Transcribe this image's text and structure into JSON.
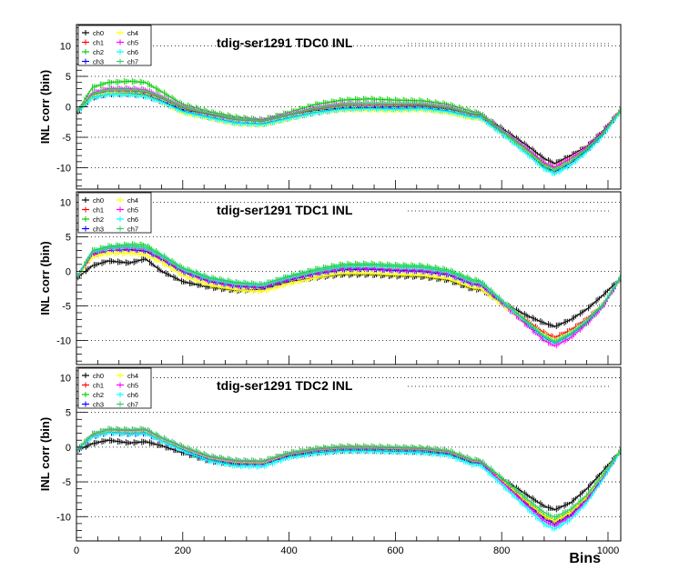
{
  "x_axis": {
    "label": "Bins",
    "range": [
      0,
      1024
    ],
    "ticks": [
      {
        "value": 0,
        "label": "0"
      },
      {
        "value": 200,
        "label": "200"
      },
      {
        "value": 400,
        "label": "400"
      },
      {
        "value": 600,
        "label": "600"
      },
      {
        "value": 800,
        "label": "800"
      },
      {
        "value": 1000,
        "label": "1000"
      }
    ]
  },
  "colors": {
    "ch0": "#000000",
    "ch1": "#ff0000",
    "ch2": "#00cc00",
    "ch3": "#0000ff",
    "ch4": "#ffff00",
    "ch5": "#ff00ff",
    "ch6": "#00ffff",
    "ch7": "#33cc66"
  },
  "legend_entries": [
    "ch0",
    "ch1",
    "ch2",
    "ch3",
    "ch4",
    "ch5",
    "ch6",
    "ch7"
  ],
  "chart_data": [
    {
      "type": "line",
      "title": "tdig-ser1291 TDC0 INL",
      "ylabel": "INL corr (bin)",
      "xlim": [
        0,
        1024
      ],
      "ylim": [
        -13.5,
        13.5
      ],
      "yticks": [
        -10,
        -5,
        0,
        5,
        10
      ],
      "grid": "horizontal-dotted",
      "legend_placement": "top-left",
      "x": [
        0,
        30,
        60,
        100,
        130,
        160,
        200,
        250,
        300,
        350,
        400,
        450,
        500,
        550,
        600,
        650,
        700,
        745,
        760,
        800,
        850,
        880,
        900,
        930,
        960,
        990,
        1024
      ],
      "series": [
        {
          "name": "ch0",
          "values": [
            -1,
            1.5,
            2.2,
            2.2,
            2.0,
            1.0,
            -0.5,
            -1.2,
            -2.0,
            -2.3,
            -1.3,
            -0.6,
            -0.2,
            -0.1,
            0.0,
            0.1,
            -0.4,
            -1.2,
            -1.3,
            -3.5,
            -6.5,
            -8.5,
            -9.3,
            -8.0,
            -6.5,
            -4.0,
            -0.5
          ]
        },
        {
          "name": "ch1",
          "values": [
            -1,
            2.0,
            2.6,
            2.6,
            2.4,
            1.4,
            -0.2,
            -1.3,
            -2.1,
            -2.4,
            -1.4,
            -0.4,
            0.2,
            0.3,
            0.3,
            0.3,
            -0.2,
            -1.3,
            -1.4,
            -4.0,
            -7.2,
            -9.3,
            -10.0,
            -8.5,
            -6.8,
            -4.3,
            -0.5
          ]
        },
        {
          "name": "ch2",
          "values": [
            -1,
            3.2,
            4.0,
            4.2,
            4.0,
            2.5,
            0.4,
            -0.8,
            -1.7,
            -2.1,
            -0.9,
            0.4,
            1.1,
            1.3,
            1.1,
            1.0,
            0.4,
            -0.8,
            -1.0,
            -3.9,
            -7.6,
            -10.0,
            -10.7,
            -9.2,
            -7.0,
            -4.5,
            -0.6
          ]
        },
        {
          "name": "ch3",
          "values": [
            -1,
            1.6,
            2.1,
            2.1,
            1.8,
            0.9,
            -0.7,
            -1.7,
            -2.6,
            -2.8,
            -1.8,
            -0.9,
            -0.3,
            -0.2,
            -0.3,
            -0.2,
            -0.7,
            -1.6,
            -1.7,
            -4.2,
            -7.6,
            -9.8,
            -10.6,
            -9.2,
            -7.2,
            -4.6,
            -0.6
          ]
        },
        {
          "name": "ch4",
          "values": [
            -1,
            1.7,
            2.2,
            2.1,
            1.8,
            0.8,
            -1.0,
            -1.9,
            -2.8,
            -3.0,
            -2.0,
            -1.0,
            -0.5,
            -0.5,
            -0.6,
            -0.5,
            -1.0,
            -1.9,
            -1.9,
            -4.3,
            -7.5,
            -9.6,
            -10.2,
            -8.8,
            -6.9,
            -4.4,
            -0.6
          ]
        },
        {
          "name": "ch5",
          "values": [
            -1,
            2.3,
            3.0,
            3.0,
            2.8,
            1.7,
            0.1,
            -1.1,
            -2.0,
            -2.2,
            -1.2,
            -0.1,
            0.5,
            0.6,
            0.5,
            0.5,
            0.0,
            -1.1,
            -1.2,
            -3.8,
            -7.0,
            -9.2,
            -9.9,
            -8.5,
            -6.7,
            -4.2,
            -0.5
          ]
        },
        {
          "name": "ch6",
          "values": [
            -1,
            1.5,
            2.0,
            2.0,
            1.7,
            0.8,
            -0.8,
            -1.8,
            -2.7,
            -2.9,
            -1.9,
            -1.0,
            -0.4,
            -0.3,
            -0.4,
            -0.3,
            -0.8,
            -1.7,
            -1.8,
            -4.4,
            -7.9,
            -10.2,
            -11.0,
            -9.6,
            -7.4,
            -4.8,
            -0.7
          ]
        },
        {
          "name": "ch7",
          "values": [
            -1,
            2.1,
            2.8,
            2.8,
            2.6,
            1.6,
            0.0,
            -1.1,
            -2.0,
            -2.3,
            -1.3,
            -0.2,
            0.4,
            0.6,
            0.5,
            0.5,
            -0.1,
            -1.1,
            -1.2,
            -3.9,
            -7.3,
            -9.5,
            -10.3,
            -8.9,
            -6.9,
            -4.4,
            -0.5
          ]
        }
      ]
    },
    {
      "type": "line",
      "title": "tdig-ser1291 TDC1 INL",
      "ylabel": "INL corr (bin)",
      "xlim": [
        0,
        1024
      ],
      "ylim": [
        -13.5,
        11.5
      ],
      "yticks": [
        -10,
        -5,
        0,
        5,
        10
      ],
      "grid": "horizontal-dotted",
      "legend_placement": "top-left",
      "x": [
        0,
        30,
        60,
        100,
        130,
        160,
        200,
        250,
        300,
        350,
        400,
        450,
        500,
        550,
        600,
        650,
        700,
        745,
        760,
        800,
        850,
        880,
        900,
        930,
        960,
        990,
        1024
      ],
      "series": [
        {
          "name": "ch0",
          "values": [
            -1,
            0.8,
            1.5,
            1.2,
            1.8,
            0.0,
            -1.5,
            -2.3,
            -2.8,
            -2.6,
            -1.5,
            -0.9,
            -0.5,
            -0.5,
            -0.7,
            -0.8,
            -1.3,
            -2.6,
            -2.6,
            -4.5,
            -6.5,
            -7.5,
            -8.0,
            -7.0,
            -5.5,
            -3.5,
            -1.0
          ]
        },
        {
          "name": "ch1",
          "values": [
            -1,
            2.3,
            3.0,
            3.2,
            3.0,
            1.8,
            0.0,
            -1.4,
            -2.1,
            -2.3,
            -1.2,
            -0.3,
            0.4,
            0.4,
            0.2,
            0.1,
            -0.4,
            -1.8,
            -1.9,
            -4.4,
            -7.3,
            -8.9,
            -9.6,
            -8.5,
            -6.9,
            -4.8,
            -1.0
          ]
        },
        {
          "name": "ch2",
          "values": [
            -1,
            3.0,
            3.6,
            3.9,
            3.8,
            2.4,
            0.5,
            -0.9,
            -1.6,
            -1.9,
            -0.7,
            0.3,
            1.0,
            1.1,
            0.9,
            0.8,
            0.2,
            -1.2,
            -1.4,
            -4.2,
            -7.5,
            -9.4,
            -10.3,
            -9.2,
            -7.5,
            -5.0,
            -0.8
          ]
        },
        {
          "name": "ch3",
          "values": [
            -1,
            2.5,
            3.0,
            3.1,
            2.9,
            1.7,
            -0.1,
            -1.5,
            -2.2,
            -2.4,
            -1.3,
            -0.4,
            0.2,
            0.3,
            0.1,
            0.0,
            -0.5,
            -1.9,
            -2.0,
            -4.6,
            -7.8,
            -9.6,
            -10.4,
            -9.2,
            -7.4,
            -5.1,
            -1.0
          ]
        },
        {
          "name": "ch4",
          "values": [
            -1,
            2.1,
            2.6,
            2.6,
            2.4,
            1.3,
            -0.6,
            -2.0,
            -2.7,
            -2.9,
            -1.8,
            -0.9,
            -0.3,
            -0.3,
            -0.5,
            -0.6,
            -1.1,
            -2.4,
            -2.5,
            -4.8,
            -7.6,
            -9.2,
            -10.0,
            -8.9,
            -7.2,
            -4.9,
            -1.0
          ]
        },
        {
          "name": "ch5",
          "values": [
            -1,
            2.6,
            3.3,
            3.4,
            3.2,
            2.0,
            0.1,
            -1.3,
            -2.0,
            -2.2,
            -1.1,
            -0.2,
            0.5,
            0.5,
            0.3,
            0.2,
            -0.3,
            -1.7,
            -1.8,
            -4.5,
            -8.0,
            -10.0,
            -10.8,
            -9.6,
            -7.6,
            -5.2,
            -0.9
          ]
        },
        {
          "name": "ch6",
          "values": [
            -1,
            2.8,
            3.4,
            3.6,
            3.4,
            2.2,
            0.3,
            -1.1,
            -1.8,
            -2.0,
            -0.9,
            0.0,
            0.7,
            0.8,
            0.6,
            0.5,
            -0.1,
            -1.5,
            -1.6,
            -4.3,
            -7.6,
            -9.5,
            -10.3,
            -9.1,
            -7.2,
            -4.9,
            -0.8
          ]
        },
        {
          "name": "ch7",
          "values": [
            -1,
            2.9,
            3.5,
            3.7,
            3.5,
            2.3,
            0.4,
            -1.0,
            -1.7,
            -1.9,
            -0.8,
            0.1,
            0.8,
            0.9,
            0.7,
            0.6,
            0.0,
            -1.4,
            -1.5,
            -4.2,
            -7.5,
            -9.4,
            -10.2,
            -9.0,
            -7.2,
            -4.9,
            -0.8
          ]
        }
      ]
    },
    {
      "type": "line",
      "title": "tdig-ser1291 TDC2 INL",
      "ylabel": "INL corr (bin)",
      "xlim": [
        0,
        1024
      ],
      "ylim": [
        -13.5,
        11.5
      ],
      "yticks": [
        -10,
        -5,
        0,
        5,
        10
      ],
      "grid": "horizontal-dotted",
      "legend_placement": "top-left",
      "x": [
        0,
        30,
        60,
        100,
        130,
        160,
        200,
        250,
        300,
        350,
        400,
        450,
        500,
        550,
        600,
        650,
        700,
        745,
        760,
        800,
        850,
        880,
        900,
        930,
        960,
        990,
        1024
      ],
      "series": [
        {
          "name": "ch0",
          "values": [
            -0.5,
            0.5,
            1.0,
            0.6,
            0.8,
            0.2,
            -0.8,
            -2.0,
            -2.5,
            -2.5,
            -1.3,
            -0.8,
            -0.5,
            -0.5,
            -0.6,
            -0.7,
            -1.0,
            -2.3,
            -2.3,
            -4.5,
            -7.0,
            -8.5,
            -9.0,
            -8.0,
            -6.0,
            -3.5,
            -0.5
          ]
        },
        {
          "name": "ch1",
          "values": [
            -0.5,
            1.6,
            2.2,
            2.0,
            2.1,
            1.0,
            -0.3,
            -1.7,
            -2.3,
            -2.4,
            -1.1,
            -0.5,
            -0.2,
            -0.2,
            -0.3,
            -0.4,
            -0.8,
            -2.1,
            -2.2,
            -4.9,
            -8.2,
            -10.1,
            -10.9,
            -9.6,
            -7.4,
            -4.3,
            -0.5
          ]
        },
        {
          "name": "ch2",
          "values": [
            -0.5,
            1.9,
            2.6,
            2.5,
            2.6,
            1.4,
            0.1,
            -1.3,
            -1.9,
            -2.0,
            -0.8,
            -0.2,
            0.1,
            0.1,
            0.0,
            -0.1,
            -0.5,
            -1.8,
            -1.9,
            -4.6,
            -7.9,
            -9.8,
            -10.5,
            -9.2,
            -7.1,
            -4.1,
            -0.4
          ]
        },
        {
          "name": "ch3",
          "values": [
            -0.5,
            1.5,
            2.1,
            1.9,
            2.0,
            0.9,
            -0.4,
            -1.8,
            -2.4,
            -2.5,
            -1.2,
            -0.6,
            -0.3,
            -0.3,
            -0.4,
            -0.5,
            -0.9,
            -2.2,
            -2.3,
            -5.0,
            -8.4,
            -10.3,
            -11.1,
            -9.8,
            -7.6,
            -4.4,
            -0.5
          ]
        },
        {
          "name": "ch4",
          "values": [
            -0.5,
            1.7,
            2.3,
            2.2,
            2.3,
            1.1,
            -0.2,
            -1.6,
            -2.2,
            -2.3,
            -1.0,
            -0.4,
            -0.1,
            -0.1,
            -0.2,
            -0.3,
            -0.7,
            -2.0,
            -2.1,
            -4.8,
            -8.0,
            -9.9,
            -10.6,
            -9.3,
            -7.2,
            -4.2,
            -0.4
          ]
        },
        {
          "name": "ch5",
          "values": [
            -0.5,
            1.8,
            2.5,
            2.4,
            2.5,
            1.3,
            0.0,
            -1.4,
            -2.0,
            -2.1,
            -0.9,
            -0.3,
            0.0,
            0.0,
            -0.1,
            -0.2,
            -0.6,
            -1.9,
            -2.0,
            -5.0,
            -8.6,
            -10.7,
            -11.4,
            -10.0,
            -7.7,
            -4.5,
            -0.4
          ]
        },
        {
          "name": "ch6",
          "values": [
            -0.5,
            1.5,
            2.1,
            1.9,
            2.0,
            0.9,
            -0.5,
            -2.0,
            -2.7,
            -2.8,
            -1.5,
            -0.9,
            -0.6,
            -0.6,
            -0.7,
            -0.8,
            -1.2,
            -2.5,
            -2.6,
            -5.4,
            -9.0,
            -11.1,
            -11.8,
            -10.4,
            -8.0,
            -4.7,
            -0.5
          ]
        },
        {
          "name": "ch7",
          "values": [
            -0.5,
            1.9,
            2.6,
            2.5,
            2.6,
            1.4,
            0.1,
            -1.3,
            -1.9,
            -2.0,
            -0.8,
            -0.2,
            0.1,
            0.1,
            0.0,
            -0.1,
            -0.5,
            -1.8,
            -1.9,
            -4.4,
            -7.6,
            -9.4,
            -10.1,
            -8.9,
            -6.9,
            -4.0,
            -0.4
          ]
        }
      ]
    }
  ]
}
